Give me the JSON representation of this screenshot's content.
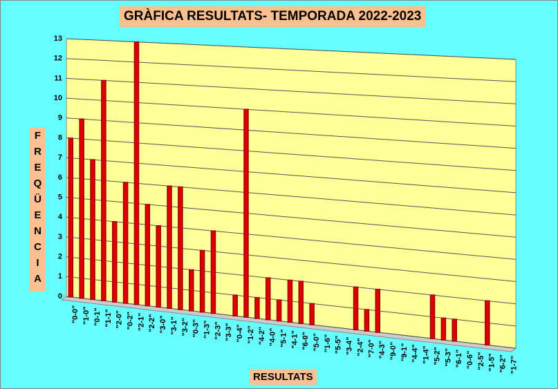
{
  "chart_data": {
    "type": "bar",
    "title": "GRÀFICA RESULTATS- TEMPORADA 2022-2023",
    "x_label": "RESULTATS",
    "y_label": "FREQÜENCIA",
    "categories": [
      "\"0-0\"",
      "\"1-0\"",
      "\"0-1\"",
      "\"1-1\"",
      "\"2-0\"",
      "\"0-2\"",
      "\"2-1\"",
      "\"2-2\"",
      "\"3-0\"",
      "\"3-1\"",
      "\"3-2\"",
      "\"0-3\"",
      "\"1-3\"",
      "\"2-3\"",
      "\"3-3\"",
      "\"0-4\"",
      "\"1-2\"",
      "\"4-2\"",
      "\"4-0\"",
      "\"5-1\"",
      "\"4-1\"",
      "\"6-0\"",
      "\"5-0\"",
      "\"1-6\"",
      "\"5-5\"",
      "\"3-4\"",
      "\"2-4\"",
      "\"7-0\"",
      "\"4-3\"",
      "\"9-0\"",
      "\"9-1\"",
      "\"4-4\"",
      "\"1-4\"",
      "\"5-2\"",
      "\"5-3\"",
      "\"6-1\"",
      "\"0-6\"",
      "\"2-5\"",
      "\"1-5\"",
      "\"6-2\"",
      "\"1-7\""
    ],
    "values": [
      8,
      9,
      7,
      11,
      4,
      6,
      13,
      5,
      4,
      6,
      6,
      2,
      3,
      4,
      0,
      1,
      10,
      1,
      2,
      1,
      2,
      2,
      1,
      0,
      0,
      0,
      2,
      1,
      2,
      0,
      0,
      0,
      0,
      2,
      1,
      1,
      0,
      0,
      2,
      0,
      0
    ],
    "color": "#e00000",
    "ylim": [
      0,
      13
    ],
    "yticks": [
      0,
      1,
      2,
      3,
      4,
      5,
      6,
      7,
      8,
      9,
      10,
      11,
      12,
      13
    ],
    "grid": true
  }
}
